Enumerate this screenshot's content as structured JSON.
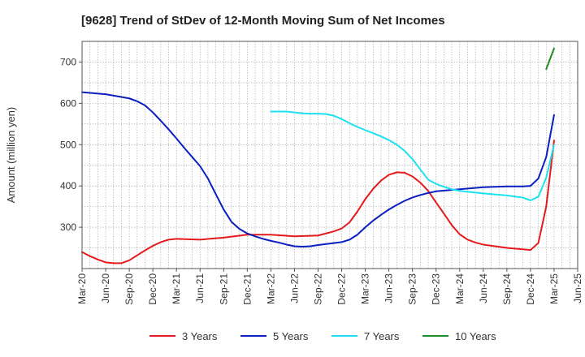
{
  "chart_data": {
    "type": "line",
    "title": "[9628]  Trend of StDev of 12-Month Moving Sum of Net Incomes",
    "xlabel": "",
    "ylabel": "Amount (million yen)",
    "x_ticks": [
      "Mar-20",
      "Jun-20",
      "Sep-20",
      "Dec-20",
      "Mar-21",
      "Jun-21",
      "Sep-21",
      "Dec-21",
      "Mar-22",
      "Jun-22",
      "Sep-22",
      "Dec-22",
      "Mar-23",
      "Jun-23",
      "Sep-23",
      "Dec-23",
      "Mar-24",
      "Jun-24",
      "Sep-24",
      "Dec-24",
      "Mar-25",
      "Jun-25"
    ],
    "y_ticks": [
      300,
      400,
      500,
      600,
      700
    ],
    "ylim": [
      200,
      750
    ],
    "grid": true,
    "legend_position": "bottom",
    "series": [
      {
        "name": "3 Years",
        "color": "#e41a1c",
        "points": [
          [
            "Mar-20",
            240
          ],
          [
            "Apr-20",
            230
          ],
          [
            "May-20",
            222
          ],
          [
            "Jun-20",
            215
          ],
          [
            "Jul-20",
            213
          ],
          [
            "Aug-20",
            213
          ],
          [
            "Sep-20",
            220
          ],
          [
            "Oct-20",
            232
          ],
          [
            "Nov-20",
            244
          ],
          [
            "Dec-20",
            255
          ],
          [
            "Jan-21",
            264
          ],
          [
            "Feb-21",
            270
          ],
          [
            "Mar-21",
            272
          ],
          [
            "Jun-21",
            270
          ],
          [
            "Sep-21",
            275
          ],
          [
            "Dec-21",
            282
          ],
          [
            "Mar-22",
            282
          ],
          [
            "Jun-22",
            278
          ],
          [
            "Sep-22",
            280
          ],
          [
            "Oct-22",
            285
          ],
          [
            "Nov-22",
            290
          ],
          [
            "Dec-22",
            297
          ],
          [
            "Jan-23",
            312
          ],
          [
            "Feb-23",
            338
          ],
          [
            "Mar-23",
            368
          ],
          [
            "Apr-23",
            393
          ],
          [
            "May-23",
            413
          ],
          [
            "Jun-23",
            427
          ],
          [
            "Jul-23",
            433
          ],
          [
            "Aug-23",
            432
          ],
          [
            "Sep-23",
            423
          ],
          [
            "Oct-23",
            408
          ],
          [
            "Nov-23",
            388
          ],
          [
            "Dec-23",
            360
          ],
          [
            "Jan-24",
            333
          ],
          [
            "Feb-24",
            305
          ],
          [
            "Mar-24",
            283
          ],
          [
            "Apr-24",
            270
          ],
          [
            "May-24",
            263
          ],
          [
            "Jun-24",
            258
          ],
          [
            "Sep-24",
            250
          ],
          [
            "Dec-24",
            245
          ],
          [
            "Jan-25",
            262
          ],
          [
            "Feb-25",
            350
          ],
          [
            "Mar-25",
            510
          ]
        ]
      },
      {
        "name": "5 Years",
        "color": "#0a1fbf",
        "points": [
          [
            "Mar-20",
            627
          ],
          [
            "Jun-20",
            622
          ],
          [
            "Sep-20",
            612
          ],
          [
            "Oct-20",
            605
          ],
          [
            "Nov-20",
            595
          ],
          [
            "Dec-20",
            578
          ],
          [
            "Jan-21",
            558
          ],
          [
            "Feb-21",
            537
          ],
          [
            "Mar-21",
            515
          ],
          [
            "Apr-21",
            492
          ],
          [
            "May-21",
            470
          ],
          [
            "Jun-21",
            448
          ],
          [
            "Jul-21",
            418
          ],
          [
            "Aug-21",
            380
          ],
          [
            "Sep-21",
            343
          ],
          [
            "Oct-21",
            313
          ],
          [
            "Nov-21",
            296
          ],
          [
            "Dec-21",
            285
          ],
          [
            "Jan-22",
            278
          ],
          [
            "Feb-22",
            272
          ],
          [
            "Mar-22",
            267
          ],
          [
            "Apr-22",
            263
          ],
          [
            "May-22",
            258
          ],
          [
            "Jun-22",
            254
          ],
          [
            "Jul-22",
            253
          ],
          [
            "Aug-22",
            254
          ],
          [
            "Sep-22",
            257
          ],
          [
            "Dec-22",
            264
          ],
          [
            "Jan-23",
            270
          ],
          [
            "Feb-23",
            282
          ],
          [
            "Mar-23",
            300
          ],
          [
            "Apr-23",
            316
          ],
          [
            "May-23",
            330
          ],
          [
            "Jun-23",
            343
          ],
          [
            "Jul-23",
            354
          ],
          [
            "Aug-23",
            364
          ],
          [
            "Sep-23",
            372
          ],
          [
            "Oct-23",
            378
          ],
          [
            "Nov-23",
            383
          ],
          [
            "Dec-23",
            387
          ],
          [
            "Mar-24",
            392
          ],
          [
            "Jun-24",
            397
          ],
          [
            "Sep-24",
            399
          ],
          [
            "Nov-24",
            399
          ],
          [
            "Dec-24",
            400
          ],
          [
            "Jan-25",
            418
          ],
          [
            "Feb-25",
            470
          ],
          [
            "Mar-25",
            572
          ]
        ]
      },
      {
        "name": "7 Years",
        "color": "#1de0f0",
        "points": [
          [
            "Mar-22",
            580
          ],
          [
            "Apr-22",
            580
          ],
          [
            "May-22",
            580
          ],
          [
            "Jun-22",
            578
          ],
          [
            "Jul-22",
            576
          ],
          [
            "Aug-22",
            575
          ],
          [
            "Sep-22",
            575
          ],
          [
            "Oct-22",
            574
          ],
          [
            "Nov-22",
            570
          ],
          [
            "Dec-22",
            562
          ],
          [
            "Jan-23",
            552
          ],
          [
            "Feb-23",
            543
          ],
          [
            "Mar-23",
            535
          ],
          [
            "Apr-23",
            528
          ],
          [
            "May-23",
            520
          ],
          [
            "Jun-23",
            511
          ],
          [
            "Jul-23",
            500
          ],
          [
            "Aug-23",
            485
          ],
          [
            "Sep-23",
            465
          ],
          [
            "Oct-23",
            440
          ],
          [
            "Nov-23",
            415
          ],
          [
            "Dec-23",
            405
          ],
          [
            "Jan-24",
            398
          ],
          [
            "Feb-24",
            392
          ],
          [
            "Mar-24",
            388
          ],
          [
            "Jun-24",
            382
          ],
          [
            "Sep-24",
            377
          ],
          [
            "Nov-24",
            372
          ],
          [
            "Dec-24",
            365
          ],
          [
            "Jan-25",
            374
          ],
          [
            "Feb-25",
            420
          ],
          [
            "Mar-25",
            500
          ]
        ]
      },
      {
        "name": "10 Years",
        "color": "#228b22",
        "points": [
          [
            "Feb-25",
            683
          ],
          [
            "Mar-25",
            733
          ]
        ]
      }
    ]
  }
}
